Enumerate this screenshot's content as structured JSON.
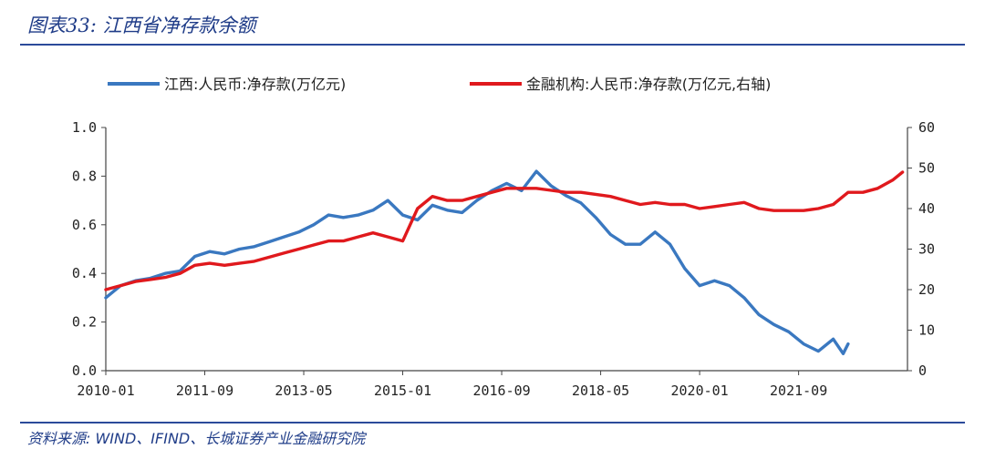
{
  "figure": {
    "title": "图表33:  江西省净存款余额",
    "source": "资料来源:  WIND、IFIND、长城证券产业金融研究院"
  },
  "chart_data": {
    "type": "line",
    "x_ticks": [
      "2010-01",
      "2011-09",
      "2013-05",
      "2015-01",
      "2016-09",
      "2018-05",
      "2020-01",
      "2021-09"
    ],
    "y_left_ticks": [
      "0.0",
      "0.2",
      "0.4",
      "0.6",
      "0.8",
      "1.0"
    ],
    "y_right_ticks": [
      "0",
      "10",
      "20",
      "30",
      "40",
      "50",
      "60"
    ],
    "ylim_left": [
      0,
      1.0
    ],
    "ylim_right": [
      0,
      60
    ],
    "grid": false,
    "legend_position": "top",
    "series": [
      {
        "name": "江西:人民币:净存款(万亿元)",
        "axis": "left",
        "color": "#3a78c0",
        "points": [
          [
            "2010-01",
            0.3
          ],
          [
            "2010-04",
            0.35
          ],
          [
            "2010-07",
            0.37
          ],
          [
            "2010-10",
            0.38
          ],
          [
            "2011-01",
            0.4
          ],
          [
            "2011-04",
            0.41
          ],
          [
            "2011-07",
            0.47
          ],
          [
            "2011-10",
            0.49
          ],
          [
            "2012-01",
            0.48
          ],
          [
            "2012-04",
            0.5
          ],
          [
            "2012-07",
            0.51
          ],
          [
            "2012-10",
            0.53
          ],
          [
            "2013-01",
            0.55
          ],
          [
            "2013-04",
            0.57
          ],
          [
            "2013-07",
            0.6
          ],
          [
            "2013-10",
            0.64
          ],
          [
            "2014-01",
            0.63
          ],
          [
            "2014-04",
            0.64
          ],
          [
            "2014-07",
            0.66
          ],
          [
            "2014-10",
            0.7
          ],
          [
            "2015-01",
            0.64
          ],
          [
            "2015-04",
            0.62
          ],
          [
            "2015-07",
            0.68
          ],
          [
            "2015-10",
            0.66
          ],
          [
            "2016-01",
            0.65
          ],
          [
            "2016-04",
            0.7
          ],
          [
            "2016-07",
            0.74
          ],
          [
            "2016-10",
            0.77
          ],
          [
            "2017-01",
            0.74
          ],
          [
            "2017-04",
            0.82
          ],
          [
            "2017-07",
            0.76
          ],
          [
            "2017-10",
            0.72
          ],
          [
            "2018-01",
            0.69
          ],
          [
            "2018-04",
            0.63
          ],
          [
            "2018-07",
            0.56
          ],
          [
            "2018-10",
            0.52
          ],
          [
            "2019-01",
            0.52
          ],
          [
            "2019-04",
            0.57
          ],
          [
            "2019-07",
            0.52
          ],
          [
            "2019-10",
            0.42
          ],
          [
            "2020-01",
            0.35
          ],
          [
            "2020-04",
            0.37
          ],
          [
            "2020-07",
            0.35
          ],
          [
            "2020-10",
            0.3
          ],
          [
            "2021-01",
            0.23
          ],
          [
            "2021-04",
            0.19
          ],
          [
            "2021-07",
            0.16
          ],
          [
            "2021-10",
            0.11
          ],
          [
            "2022-01",
            0.08
          ],
          [
            "2022-04",
            0.13
          ],
          [
            "2022-06",
            0.07
          ],
          [
            "2022-07",
            0.11
          ]
        ]
      },
      {
        "name": "金融机构:人民币:净存款(万亿元,右轴)",
        "axis": "right",
        "color": "#e0191d",
        "points": [
          [
            "2010-01",
            20
          ],
          [
            "2010-04",
            21
          ],
          [
            "2010-07",
            22
          ],
          [
            "2010-10",
            22.5
          ],
          [
            "2011-01",
            23
          ],
          [
            "2011-04",
            24
          ],
          [
            "2011-07",
            26
          ],
          [
            "2011-10",
            26.5
          ],
          [
            "2012-01",
            26
          ],
          [
            "2012-04",
            26.5
          ],
          [
            "2012-07",
            27
          ],
          [
            "2012-10",
            28
          ],
          [
            "2013-01",
            29
          ],
          [
            "2013-04",
            30
          ],
          [
            "2013-07",
            31
          ],
          [
            "2013-10",
            32
          ],
          [
            "2014-01",
            32
          ],
          [
            "2014-04",
            33
          ],
          [
            "2014-07",
            34
          ],
          [
            "2014-10",
            33
          ],
          [
            "2015-01",
            32
          ],
          [
            "2015-04",
            40
          ],
          [
            "2015-07",
            43
          ],
          [
            "2015-10",
            42
          ],
          [
            "2016-01",
            42
          ],
          [
            "2016-04",
            43
          ],
          [
            "2016-07",
            44
          ],
          [
            "2016-10",
            45
          ],
          [
            "2017-01",
            45
          ],
          [
            "2017-04",
            45
          ],
          [
            "2017-07",
            44.5
          ],
          [
            "2017-10",
            44
          ],
          [
            "2018-01",
            44
          ],
          [
            "2018-04",
            43.5
          ],
          [
            "2018-07",
            43
          ],
          [
            "2018-10",
            42
          ],
          [
            "2019-01",
            41
          ],
          [
            "2019-04",
            41.5
          ],
          [
            "2019-07",
            41
          ],
          [
            "2019-10",
            41
          ],
          [
            "2020-01",
            40
          ],
          [
            "2020-04",
            40.5
          ],
          [
            "2020-07",
            41
          ],
          [
            "2020-10",
            41.5
          ],
          [
            "2021-01",
            40
          ],
          [
            "2021-04",
            39.5
          ],
          [
            "2021-07",
            39.5
          ],
          [
            "2021-10",
            39.5
          ],
          [
            "2022-01",
            40
          ],
          [
            "2022-04",
            41
          ],
          [
            "2022-07",
            44
          ],
          [
            "2022-10",
            44
          ],
          [
            "2023-01",
            45
          ],
          [
            "2023-04",
            47
          ],
          [
            "2023-06",
            49
          ]
        ]
      }
    ]
  }
}
